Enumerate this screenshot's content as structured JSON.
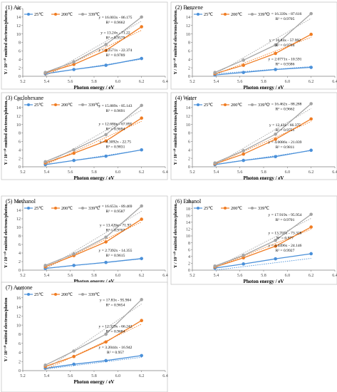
{
  "chart_data": [
    {
      "type": "scatter",
      "title": "(1) Air",
      "xlabel": "Photon energy / eV",
      "ylabel": "Y / 10⁻¹⁰ emitted electrons/photon",
      "xlim": [
        5.2,
        6.4
      ],
      "ylim": [
        0,
        16
      ],
      "xticks": [
        "5.2",
        "5.4",
        "5.6",
        "5.8",
        "6.0",
        "6.2",
        "6.4"
      ],
      "yticks": [
        "0",
        "2",
        "4",
        "6",
        "8",
        "10",
        "12",
        "14",
        "16"
      ],
      "legend": "top-left",
      "series": [
        {
          "name": "25℃",
          "color": "#4a90d9",
          "x": [
            5.39,
            5.63,
            5.9,
            6.2
          ],
          "y": [
            0.6,
            1.6,
            2.6,
            4.2
          ],
          "fit": "y = 4.2571x - 22.374",
          "r2": "R² = 0.9789"
        },
        {
          "name": "200℃",
          "color": "#f07c22",
          "x": [
            5.39,
            5.63,
            5.9,
            6.2
          ],
          "y": [
            0.8,
            2.8,
            6.1,
            11.7
          ],
          "fit": "y = 13.24x - 71.22",
          "r2": "R² = 0.9579"
        },
        {
          "name": "339℃",
          "color": "#a5a5a5",
          "x": [
            5.39,
            5.63,
            5.9,
            6.2
          ],
          "y": [
            0.9,
            3.4,
            7.5,
            14.0
          ],
          "fit": "y = 16.003x - 86.175",
          "r2": "R² = 0.9662"
        }
      ]
    },
    {
      "type": "scatter",
      "title": "(2) Benzene",
      "xlabel": "Photon energy / eV",
      "ylabel": "Y / 10⁻¹⁰ emitted electrons/photon",
      "xlim": [
        5.2,
        6.4
      ],
      "ylim": [
        0,
        16
      ],
      "xticks": [
        "5.2",
        "5.4",
        "5.6",
        "5.8",
        "6.0",
        "6.2",
        "6.4"
      ],
      "yticks": [
        "0",
        "2",
        "4",
        "6",
        "8",
        "10",
        "12",
        "14",
        "16"
      ],
      "legend": "top-left",
      "series": [
        {
          "name": "25℃",
          "color": "#4a90d9",
          "x": [
            5.39,
            5.63,
            5.9,
            6.2
          ],
          "y": [
            0.3,
            0.9,
            1.6,
            2.1
          ],
          "fit": "y = 2.0771x - 10.591",
          "r2": "R² = 0.9386"
        },
        {
          "name": "200℃",
          "color": "#f07c22",
          "x": [
            5.39,
            5.63,
            5.9,
            6.2
          ],
          "y": [
            0.6,
            2.6,
            5.4,
            9.9
          ],
          "fit": "y = 10.84x - 57.992",
          "r2": "R² = 0.9704"
        },
        {
          "name": "339℃",
          "color": "#a5a5a5",
          "x": [
            5.39,
            5.63,
            5.9,
            6.2
          ],
          "y": [
            0.9,
            3.8,
            7.4,
            14.8
          ],
          "fit": "y = 16.339x - 87.616",
          "r2": "R² = 0.9705"
        }
      ]
    },
    {
      "type": "scatter",
      "title": "(3) Cyclohexane",
      "xlabel": "Photon energy / eV",
      "ylabel": "Y / 10⁻¹⁰ emitted electrons/photon",
      "xlim": [
        5.2,
        6.4
      ],
      "ylim": [
        0,
        16
      ],
      "xticks": [
        "5.2",
        "5.4",
        "5.6",
        "5.8",
        "6.0",
        "6.2",
        "6.4"
      ],
      "yticks": [
        "0",
        "2",
        "4",
        "6",
        "8",
        "10",
        "12",
        "14",
        "16"
      ],
      "legend": "top-left",
      "series": [
        {
          "name": "25℃",
          "color": "#4a90d9",
          "x": [
            5.39,
            5.63,
            5.9,
            6.2
          ],
          "y": [
            0.5,
            1.5,
            2.5,
            4.0
          ],
          "fit": "y = 4.3092x - 22.75",
          "r2": "R² = 0.9831"
        },
        {
          "name": "200℃",
          "color": "#f07c22",
          "x": [
            5.39,
            5.63,
            5.9,
            6.2
          ],
          "y": [
            0.9,
            3.2,
            6.1,
            11.5
          ],
          "fit": "y = 12.686x - 67.895",
          "r2": "R² = 0.9694"
        },
        {
          "name": "339℃",
          "color": "#a5a5a5",
          "x": [
            5.39,
            5.63,
            5.9,
            6.2
          ],
          "y": [
            1.2,
            4.0,
            7.6,
            14.5
          ],
          "fit": "y = 15.889x - 85.143",
          "r2": "R² = 0.9691"
        }
      ]
    },
    {
      "type": "scatter",
      "title": "(4) Water",
      "xlabel": "Photon energy / eV",
      "ylabel": "Y / 10⁻¹⁰ emitted electrons/photon",
      "xlim": [
        5.2,
        6.4
      ],
      "ylim": [
        0,
        16
      ],
      "xticks": [
        "5.2",
        "5.4",
        "5.6",
        "5.8",
        "6.0",
        "6.2",
        "6.4"
      ],
      "yticks": [
        "0",
        "2",
        "4",
        "6",
        "8",
        "10",
        "12",
        "14",
        "16"
      ],
      "legend": "top-left",
      "series": [
        {
          "name": "25℃",
          "color": "#4a90d9",
          "x": [
            5.39,
            5.63,
            5.9,
            6.2
          ],
          "y": [
            0.5,
            1.5,
            2.4,
            3.9
          ],
          "fit": "y = 4.0086x - 21.039",
          "r2": "R² = 0.9811"
        },
        {
          "name": "200℃",
          "color": "#f07c22",
          "x": [
            5.39,
            5.63,
            5.9,
            6.2
          ],
          "y": [
            0.7,
            3.0,
            6.5,
            11.3
          ],
          "fit": "y = 12.43x - 66.375",
          "r2": "R² = 0.9751"
        },
        {
          "name": "339℃",
          "color": "#a5a5a5",
          "x": [
            5.39,
            5.63,
            5.9,
            6.2
          ],
          "y": [
            0.9,
            3.8,
            7.7,
            14.9
          ],
          "fit": "y = 16.462x - 88.288",
          "r2": "R² = 0.9662"
        }
      ]
    },
    {
      "type": "scatter",
      "title": "(5) Methanol",
      "xlabel": "Photon energy / eV",
      "ylabel": "Y / 10⁻¹⁰ emitted electrons/photon",
      "xlim": [
        5.2,
        6.4
      ],
      "ylim": [
        0,
        16
      ],
      "xticks": [
        "5.2",
        "5.4",
        "5.6",
        "5.8",
        "6.0",
        "6.2",
        "6.4"
      ],
      "yticks": [
        "0",
        "2",
        "4",
        "6",
        "8",
        "10",
        "12",
        "14",
        "16"
      ],
      "legend": "top-left",
      "series": [
        {
          "name": "25℃",
          "color": "#4a90d9",
          "x": [
            5.39,
            5.63,
            5.9,
            6.2
          ],
          "y": [
            0.4,
            1.1,
            1.8,
            2.7
          ],
          "fit": "y = 2.7392x - 14.355",
          "r2": "R² = 0.9615"
        },
        {
          "name": "200℃",
          "color": "#f07c22",
          "x": [
            5.39,
            5.63,
            5.9,
            6.2
          ],
          "y": [
            0.8,
            3.4,
            6.6,
            11.9
          ],
          "fit": "y = 13.426x - 71.97",
          "r2": "R² = 0.9707"
        },
        {
          "name": "339℃",
          "color": "#a5a5a5",
          "x": [
            5.39,
            5.63,
            5.9,
            6.2
          ],
          "y": [
            1.1,
            3.8,
            7.7,
            15.0
          ],
          "fit": "y = 16.653x - 89.469",
          "r2": "R² = 0.9587"
        }
      ]
    },
    {
      "type": "scatter",
      "title": "(6) Ethanol",
      "xlabel": "Photon energy / eV",
      "ylabel": "Y / 10⁻¹⁰ emitted electrons/photon",
      "xlim": [
        5.2,
        6.4
      ],
      "ylim": [
        0,
        20
      ],
      "xticks": [
        "5.2",
        "5.4",
        "5.6",
        "5.8",
        "6.0",
        "6.2",
        "6.4"
      ],
      "yticks": [
        "0",
        "2",
        "4",
        "6",
        "8",
        "10",
        "12",
        "14",
        "16",
        "18",
        "20"
      ],
      "legend": "top-left",
      "series": [
        {
          "name": "25℃",
          "color": "#4a90d9",
          "x": [
            5.39,
            5.63,
            5.9,
            6.2
          ],
          "y": [
            0.6,
            1.8,
            3.3,
            4.8
          ],
          "fit": "y = 4.4496x - 24.146",
          "r2": "R² = 0.9927"
        },
        {
          "name": "200℃",
          "color": "#f07c22",
          "x": [
            5.39,
            5.63,
            5.9,
            6.2
          ],
          "y": [
            0.9,
            3.6,
            7.0,
            12.6
          ],
          "fit": "y = 13.755x - 73.328",
          "r2": "R² = 0.977"
        },
        {
          "name": "339℃",
          "color": "#a5a5a5",
          "x": [
            5.39,
            5.63,
            5.9,
            6.2
          ],
          "y": [
            1.2,
            4.3,
            8.7,
            16.3
          ],
          "fit": "y = 17.919x - 95.954",
          "r2": "R² = 0.9701"
        }
      ]
    },
    {
      "type": "scatter",
      "title": "(7) Acetone",
      "xlabel": "Photon energy / eV",
      "ylabel": "Y / 10⁻¹⁰ emitted electrons/photon",
      "xlim": [
        5.2,
        6.4
      ],
      "ylim": [
        0,
        18
      ],
      "xticks": [
        "5.2",
        "5.4",
        "5.6",
        "5.8",
        "6.0",
        "6.2",
        "6.4"
      ],
      "yticks": [
        "0",
        "2",
        "4",
        "6",
        "8",
        "10",
        "12",
        "14",
        "16",
        "18"
      ],
      "legend": "top-left",
      "series": [
        {
          "name": "25℃",
          "color": "#4a90d9",
          "x": [
            5.39,
            5.63,
            5.9,
            6.2
          ],
          "y": [
            0.5,
            1.4,
            2.2,
            3.3
          ],
          "fit": "y = 3.2044x - 16.942",
          "r2": "R² = 0.957"
        },
        {
          "name": "200℃",
          "color": "#f07c22",
          "x": [
            5.39,
            5.63,
            5.9,
            6.2
          ],
          "y": [
            0.9,
            3.1,
            6.3,
            11.0
          ],
          "fit": "y = 12.329x - 66.242",
          "r2": "R² = 0.9684"
        },
        {
          "name": "339℃",
          "color": "#a5a5a5",
          "x": [
            5.39,
            5.63,
            5.9,
            6.2
          ],
          "y": [
            1.2,
            4.3,
            8.0,
            15.6
          ],
          "fit": "y = 17.83x - 95.904",
          "r2": "R² = 0.9654"
        }
      ]
    }
  ]
}
